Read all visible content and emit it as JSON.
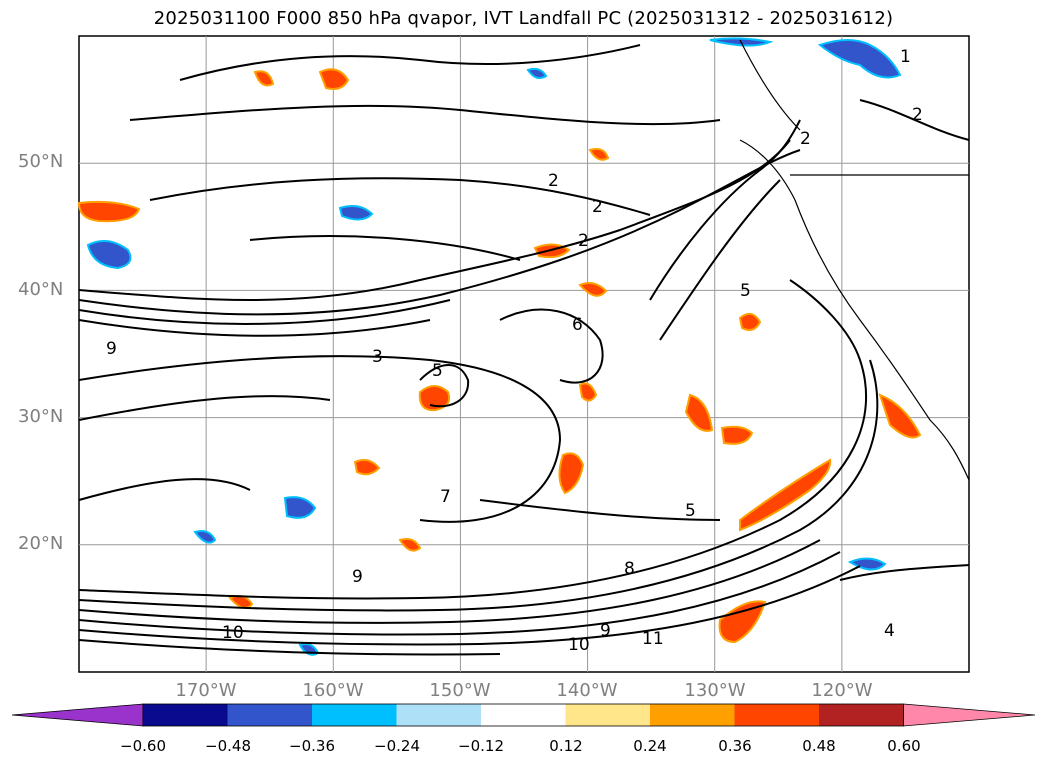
{
  "title": "2025031100 F000 850 hPa qvapor, IVT Landfall PC (2025031312 - 2025031612)",
  "lat_labels": [
    "50°N",
    "40°N",
    "30°N",
    "20°N"
  ],
  "lon_labels": [
    "170°W",
    "160°W",
    "150°W",
    "140°W",
    "130°W",
    "120°W"
  ],
  "colorbar": {
    "ticks": [
      "−0.60",
      "−0.48",
      "−0.36",
      "−0.24",
      "−0.12",
      "0.12",
      "0.24",
      "0.36",
      "0.48",
      "0.60"
    ],
    "colors": [
      "#9933cc",
      "#0a0a8f",
      "#3355cc",
      "#00bfff",
      "#aee0f7",
      "#ffffff",
      "#ffe68a",
      "#ffa000",
      "#ff4500",
      "#b22222",
      "#ff88aa"
    ]
  },
  "contour_labels": [
    "1",
    "2",
    "2",
    "2",
    "2",
    "2",
    "3",
    "5",
    "5",
    "5",
    "6",
    "7",
    "8",
    "9",
    "9",
    "9",
    "10",
    "10",
    "11",
    "4"
  ],
  "map_extent": {
    "lon": [
      -180,
      -110
    ],
    "lat": [
      10,
      60
    ]
  },
  "gridline_lons": [
    -170,
    -160,
    -150,
    -140,
    -130,
    -120
  ],
  "gridline_lats": [
    20,
    30,
    40,
    50
  ]
}
